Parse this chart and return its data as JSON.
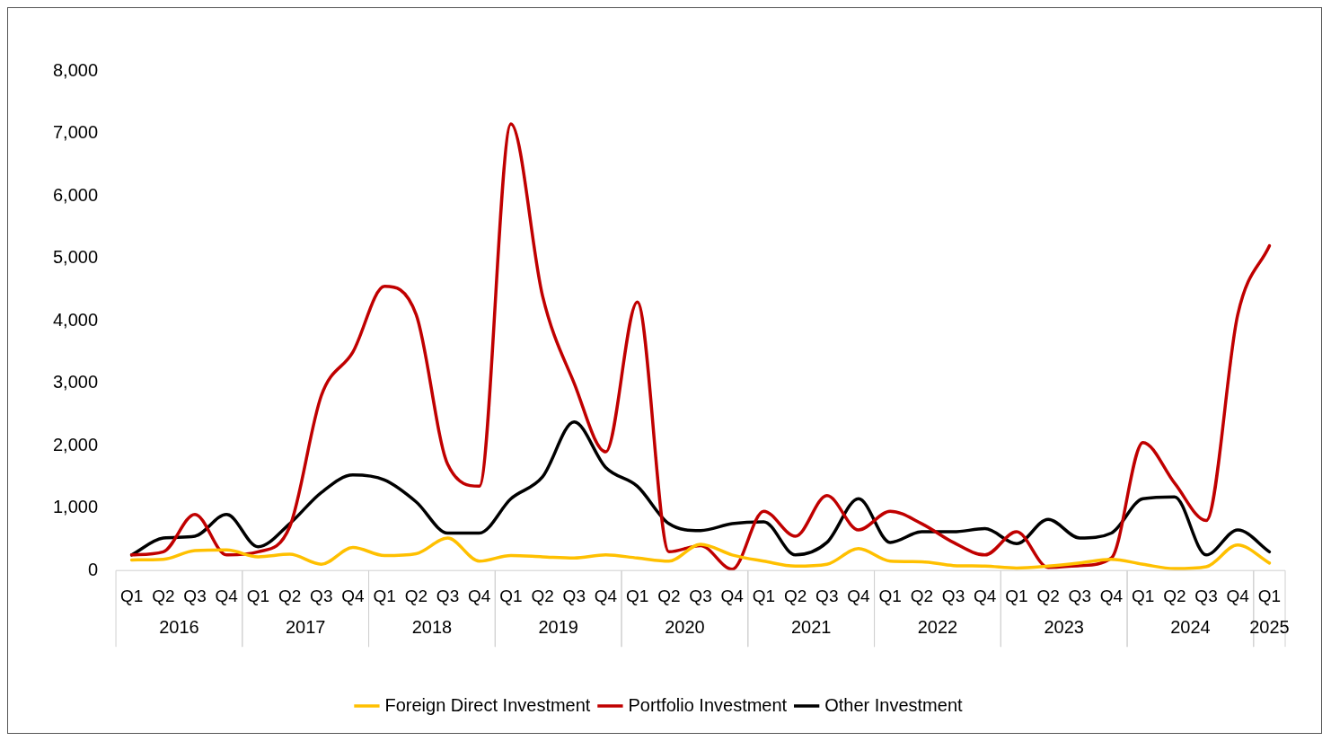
{
  "chart_data": {
    "type": "line",
    "categories": [
      "Q1",
      "Q2",
      "Q3",
      "Q4",
      "Q1",
      "Q2",
      "Q3",
      "Q4",
      "Q1",
      "Q2",
      "Q3",
      "Q4",
      "Q1",
      "Q2",
      "Q3",
      "Q4",
      "Q1",
      "Q2",
      "Q3",
      "Q4",
      "Q1",
      "Q2",
      "Q3",
      "Q4",
      "Q1",
      "Q2",
      "Q3",
      "Q4",
      "Q1",
      "Q2",
      "Q3",
      "Q4",
      "Q1",
      "Q2",
      "Q3",
      "Q4",
      "Q1"
    ],
    "annotations": [
      "2016",
      "2017",
      "2018",
      "2019",
      "2020",
      "2021",
      "2022",
      "2023",
      "2024",
      "2025"
    ],
    "series": [
      {
        "name": "Foreign Direct Investment",
        "color": "#ffc000",
        "values": [
          170,
          180,
          320,
          330,
          220,
          260,
          100,
          370,
          240,
          270,
          520,
          150,
          240,
          220,
          200,
          250,
          200,
          150,
          420,
          250,
          150,
          70,
          100,
          350,
          150,
          140,
          80,
          70,
          40,
          70,
          120,
          180,
          100,
          30,
          60,
          410,
          120
        ]
      },
      {
        "name": "Portfolio Investment",
        "color": "#c00000",
        "values": [
          250,
          300,
          900,
          250,
          300,
          700,
          2800,
          3500,
          4550,
          4100,
          1700,
          1350,
          7150,
          4400,
          3000,
          1900,
          4300,
          300,
          400,
          20,
          950,
          550,
          1200,
          650,
          950,
          750,
          450,
          250,
          620,
          50,
          80,
          200,
          2050,
          1400,
          800,
          4100,
          5200
        ]
      },
      {
        "name": "Other Investment",
        "color": "#000000",
        "values": [
          250,
          520,
          550,
          900,
          380,
          750,
          1250,
          1530,
          1450,
          1100,
          600,
          600,
          1150,
          1500,
          2380,
          1650,
          1350,
          750,
          640,
          750,
          780,
          250,
          450,
          1150,
          450,
          620,
          620,
          670,
          430,
          820,
          520,
          600,
          1150,
          1180,
          250,
          650,
          300
        ]
      }
    ],
    "ylim": [
      0,
      8000
    ],
    "yticks": [
      0,
      {
        "value": 1000,
        "label": "1,000"
      },
      {
        "value": 2000,
        "label": "2,000"
      },
      {
        "value": 3000,
        "label": "3,000"
      },
      {
        "value": 4000,
        "label": "4,000"
      },
      {
        "value": 5000,
        "label": "5,000"
      },
      {
        "value": 6000,
        "label": "6,000"
      },
      {
        "value": 7000,
        "label": "7,000"
      },
      {
        "value": 8000,
        "label": "8,000"
      }
    ],
    "grid": false,
    "legend": "bottom",
    "marker": "none",
    "line_style": "solid"
  }
}
